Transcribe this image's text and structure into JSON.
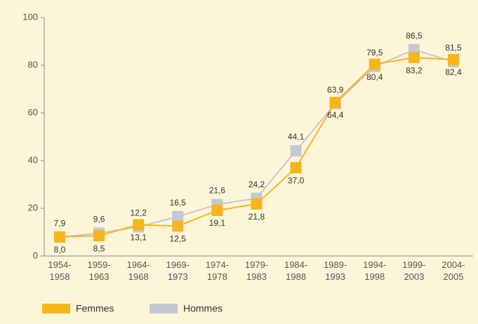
{
  "chart_data": {
    "type": "line",
    "categories": [
      "1954-1958",
      "1959-1963",
      "1964-1968",
      "1969-1973",
      "1974-1978",
      "1979-1983",
      "1984-1988",
      "1989-1993",
      "1994-1998",
      "1999-2003",
      "2004-2005"
    ],
    "series": [
      {
        "name": "Femmes",
        "color": "#f7b51c",
        "values": [
          8.0,
          8.5,
          13.1,
          12.5,
          19.1,
          21.8,
          37.0,
          64.4,
          80.4,
          83.2,
          82.4
        ],
        "value_labels": [
          "8,0",
          "8,5",
          "13,1",
          "12,5",
          "19,1",
          "21,8",
          "37,0",
          "64,4",
          "80,4",
          "83,2",
          "82,4"
        ]
      },
      {
        "name": "Hommes",
        "color": "#c3c8d3",
        "values": [
          7.9,
          9.6,
          12.2,
          16.5,
          21.6,
          24.2,
          44.1,
          63.9,
          79.5,
          86.5,
          81.5
        ],
        "value_labels": [
          "7,9",
          "9,6",
          "12,2",
          "16,5",
          "21,6",
          "24,2",
          "44,1",
          "63,9",
          "79,5",
          "86,5",
          "81,5"
        ]
      }
    ],
    "ylim": [
      0,
      100
    ],
    "yticks": [
      0,
      20,
      40,
      60,
      80,
      100
    ],
    "grid": false
  }
}
